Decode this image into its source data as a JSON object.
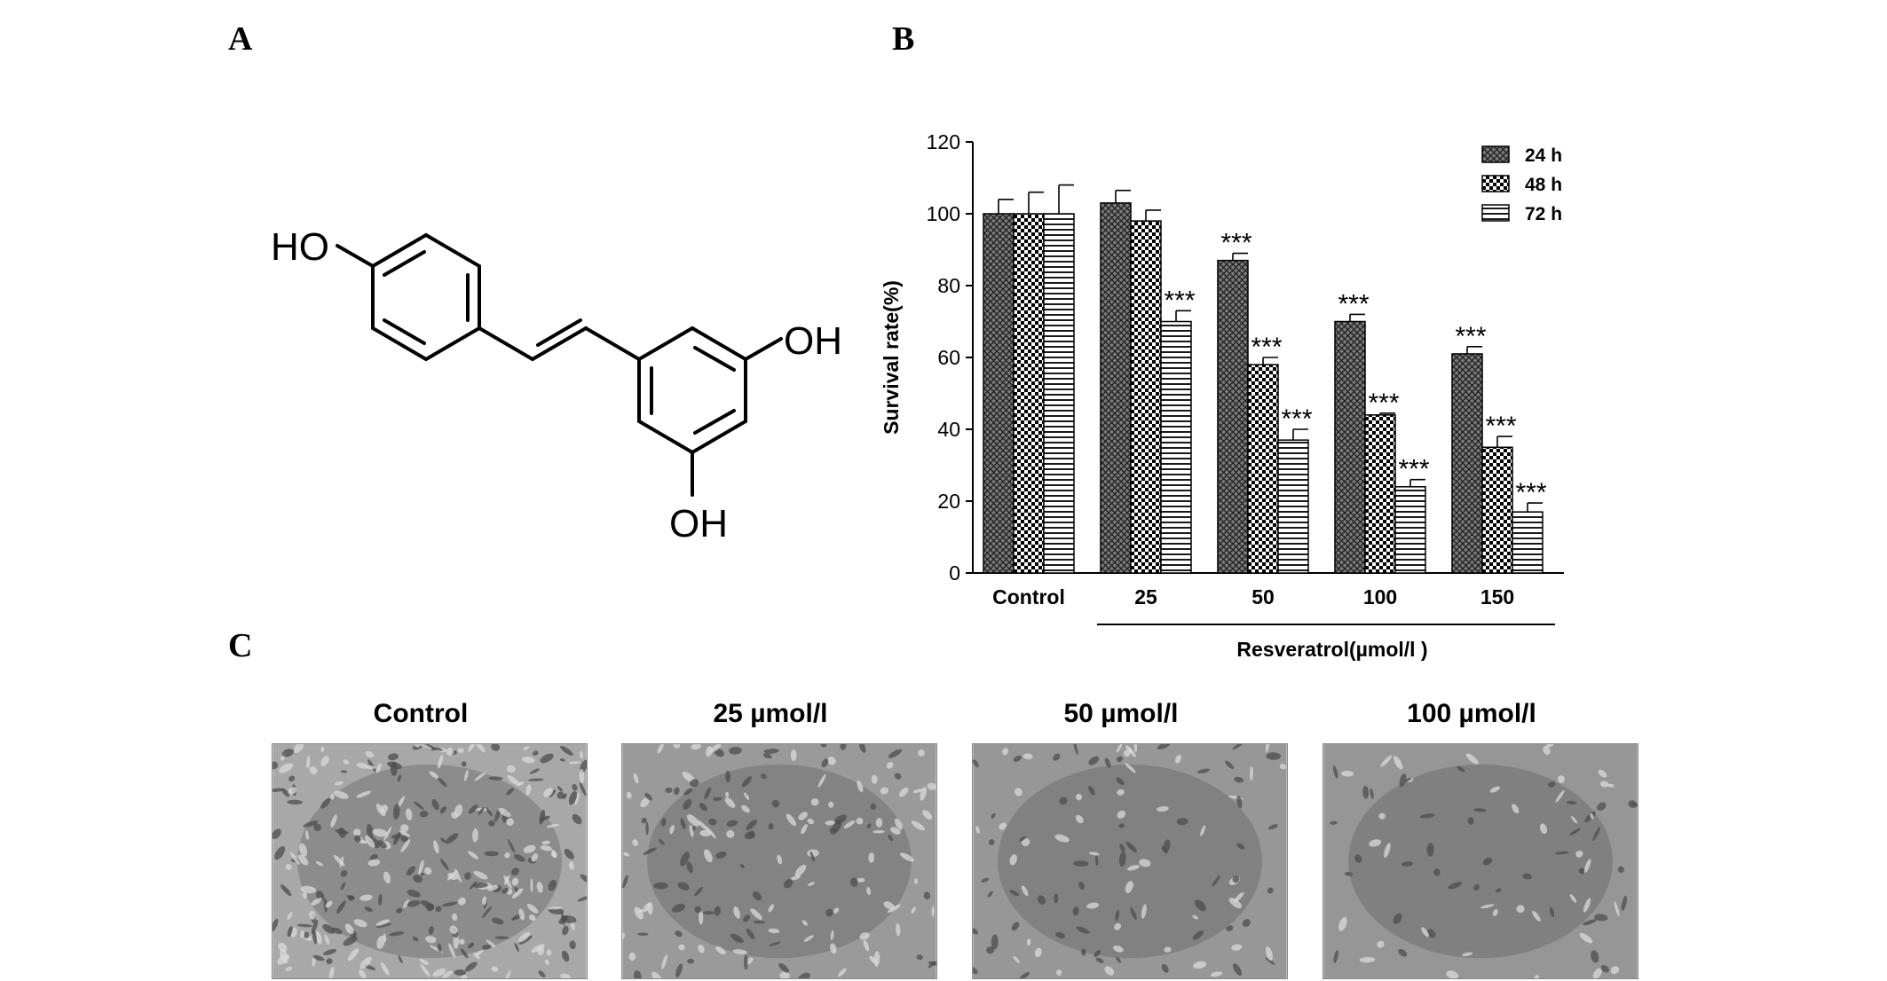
{
  "panels": {
    "a": "A",
    "b": "B",
    "c": "C"
  },
  "structure": {
    "name": "resveratrol",
    "labels": {
      "ho": "HO",
      "oh_right": "OH",
      "oh_bottom": "OH"
    }
  },
  "chart_data": {
    "type": "bar",
    "ylabel": "Survival rate(%)",
    "xlabel": "Resveratrol(µmol/l )",
    "categories": [
      "Control",
      "25",
      "50",
      "100",
      "150"
    ],
    "ylim": [
      0,
      120
    ],
    "yticks": [
      0,
      20,
      40,
      60,
      80,
      100,
      120
    ],
    "legend_position": "top-right",
    "series": [
      {
        "name": "24 h",
        "pattern": "crosshatch",
        "values": [
          100,
          103,
          87,
          70,
          61
        ],
        "errors": [
          4,
          3.5,
          2,
          2,
          2
        ],
        "sig": [
          "",
          "",
          "***",
          "***",
          "***"
        ]
      },
      {
        "name": "48 h",
        "pattern": "checker",
        "values": [
          100,
          98,
          58,
          44,
          35
        ],
        "errors": [
          6,
          3,
          2,
          0.5,
          3
        ],
        "sig": [
          "",
          "",
          "***",
          "***",
          "***"
        ]
      },
      {
        "name": "72 h",
        "pattern": "horizontal",
        "values": [
          100,
          70,
          37,
          24,
          17
        ],
        "errors": [
          8,
          3,
          3,
          2,
          2.5
        ],
        "sig": [
          "",
          "***",
          "***",
          "***",
          "***"
        ]
      }
    ]
  },
  "micrographs": [
    {
      "title": "Control",
      "cells": 300,
      "shade": "#a8a8a8"
    },
    {
      "title": "25 µmol/l",
      "cells": 170,
      "shade": "#9a9a9a"
    },
    {
      "title": "50 µmol/l",
      "cells": 110,
      "shade": "#979797"
    },
    {
      "title": "100 µmol/l",
      "cells": 80,
      "shade": "#969696"
    }
  ]
}
